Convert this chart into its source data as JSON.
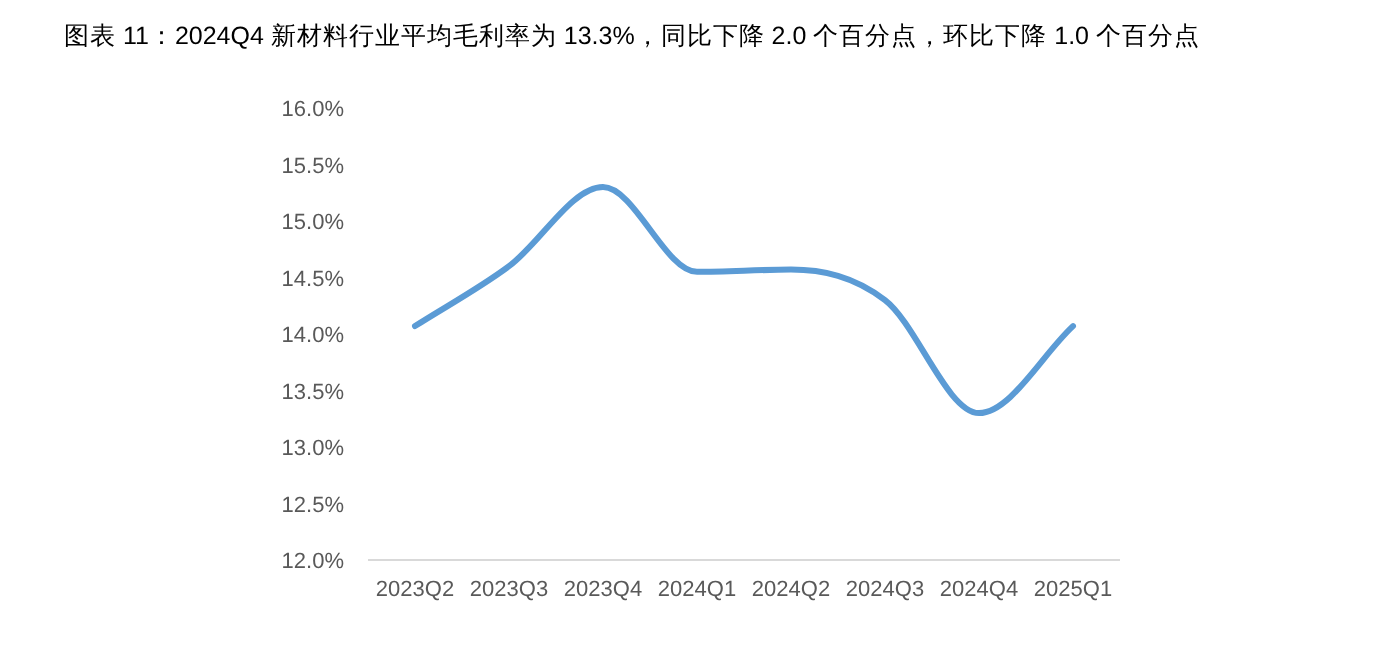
{
  "chart_data": {
    "type": "line",
    "title": "图表 11：2024Q4 新材料行业平均毛利率为 13.3%，同比下降 2.0 个百分点，环比下降 1.0 个百分点",
    "categories": [
      "2023Q2",
      "2023Q3",
      "2023Q4",
      "2024Q1",
      "2024Q2",
      "2024Q3",
      "2024Q4",
      "2025Q1"
    ],
    "series": [
      {
        "color": "#5b9bd5",
        "values": [
          14.07,
          14.6,
          15.3,
          14.55,
          14.57,
          14.3,
          13.3,
          14.07
        ]
      }
    ],
    "ylim": [
      12,
      16
    ],
    "yticks": [
      {
        "value": 12,
        "label": "12.0%"
      },
      {
        "value": 12.5,
        "label": "12.5%"
      },
      {
        "value": 13,
        "label": "13.0%"
      },
      {
        "value": 13.5,
        "label": "13.5%"
      },
      {
        "value": 14,
        "label": "14.0%"
      },
      {
        "value": 14.5,
        "label": "14.5%"
      },
      {
        "value": 15,
        "label": "15.0%"
      },
      {
        "value": 15.5,
        "label": "15.5%"
      },
      {
        "value": 16,
        "label": "16.0%"
      }
    ],
    "grid": false,
    "marker": "none"
  }
}
